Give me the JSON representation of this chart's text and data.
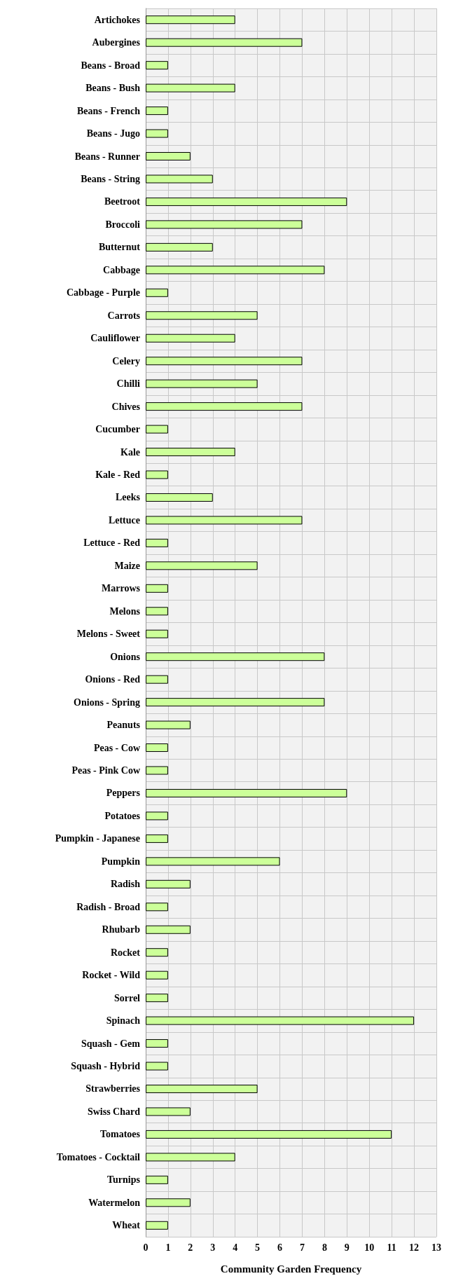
{
  "chart_data": {
    "type": "bar",
    "orientation": "horizontal",
    "xlabel": "Community Garden Frequency",
    "categories": [
      "Artichokes",
      "Aubergines",
      "Beans - Broad",
      "Beans - Bush",
      "Beans - French",
      "Beans - Jugo",
      "Beans - Runner",
      "Beans - String",
      "Beetroot",
      "Broccoli",
      "Butternut",
      "Cabbage",
      "Cabbage - Purple",
      "Carrots",
      "Cauliflower",
      "Celery",
      "Chilli",
      "Chives",
      "Cucumber",
      "Kale",
      "Kale - Red",
      "Leeks",
      "Lettuce",
      "Lettuce - Red",
      "Maize",
      "Marrows",
      "Melons",
      "Melons - Sweet",
      "Onions",
      "Onions - Red",
      "Onions - Spring",
      "Peanuts",
      "Peas - Cow",
      "Peas - Pink Cow",
      "Peppers",
      "Potatoes",
      "Pumpkin - Japanese",
      "Pumpkin",
      "Radish",
      "Radish - Broad",
      "Rhubarb",
      "Rocket",
      "Rocket - Wild",
      "Sorrel",
      "Spinach",
      "Squash - Gem",
      "Squash - Hybrid",
      "Strawberries",
      "Swiss Chard",
      "Tomatoes",
      "Tomatoes - Cocktail",
      "Turnips",
      "Watermelon",
      "Wheat"
    ],
    "values": [
      4,
      7,
      1,
      4,
      1,
      1,
      2,
      3,
      9,
      7,
      3,
      8,
      1,
      5,
      4,
      7,
      5,
      7,
      1,
      4,
      1,
      3,
      7,
      1,
      5,
      1,
      1,
      1,
      8,
      1,
      8,
      2,
      1,
      1,
      9,
      1,
      1,
      6,
      2,
      1,
      2,
      1,
      1,
      1,
      12,
      1,
      1,
      5,
      2,
      11,
      4,
      1,
      2,
      1
    ],
    "color": "#ccff99",
    "xlim": [
      0,
      13
    ],
    "xticks": [
      0,
      1,
      2,
      3,
      4,
      5,
      6,
      7,
      8,
      9,
      10,
      11,
      12,
      13
    ],
    "grid": true
  }
}
